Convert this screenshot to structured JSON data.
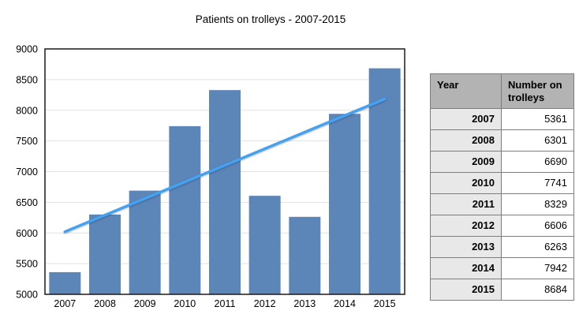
{
  "chart_data": {
    "type": "bar",
    "title": "Patients on trolleys - 2007-2015",
    "categories": [
      "2007",
      "2008",
      "2009",
      "2010",
      "2011",
      "2012",
      "2013",
      "2014",
      "2015"
    ],
    "values": [
      5361,
      6301,
      6690,
      7741,
      8329,
      6606,
      6263,
      7942,
      8684
    ],
    "xlabel": "",
    "ylabel": "",
    "ylim": [
      5000,
      9000
    ],
    "ytick_step": 500,
    "yticks": [
      "5000",
      "5500",
      "6000",
      "6500",
      "7000",
      "7500",
      "8000",
      "8500",
      "9000"
    ],
    "grid": true,
    "legend": false,
    "trendline": {
      "type": "linear"
    },
    "colors": {
      "bar": "#5c85b8",
      "trendline": "#45a1f2",
      "gridline": "#e2e2e2",
      "frame": "#1a1a1a",
      "background": "#ffffff"
    }
  },
  "table": {
    "columns": [
      "Year",
      "Number on trolleys"
    ],
    "rows": [
      {
        "year": "2007",
        "value": "5361"
      },
      {
        "year": "2008",
        "value": "6301"
      },
      {
        "year": "2009",
        "value": "6690"
      },
      {
        "year": "2010",
        "value": "7741"
      },
      {
        "year": "2011",
        "value": "8329"
      },
      {
        "year": "2012",
        "value": "6606"
      },
      {
        "year": "2013",
        "value": "6263"
      },
      {
        "year": "2014",
        "value": "7942"
      },
      {
        "year": "2015",
        "value": "8684"
      }
    ],
    "colors": {
      "header_bg": "#b3b3b3",
      "year_bg": "#e8e8e8",
      "value_bg": "#ffffff",
      "border": "#7d7d7d"
    }
  }
}
